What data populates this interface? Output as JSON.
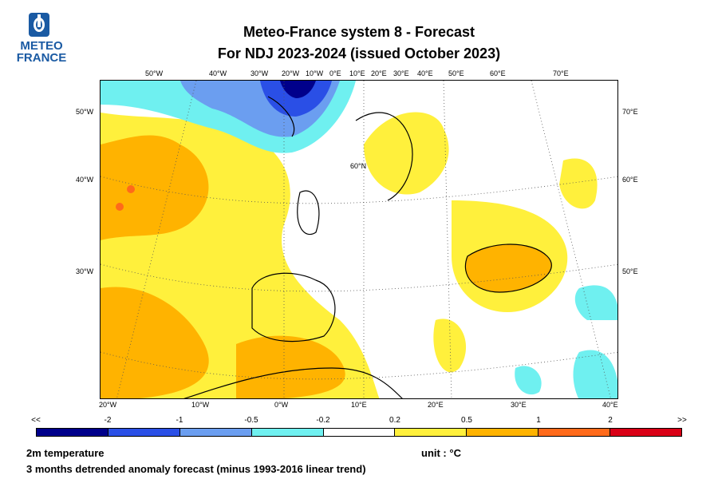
{
  "logo": {
    "line1": "METEO",
    "line2": "FRANCE"
  },
  "title": {
    "line1": "Meteo-France system 8  -  Forecast",
    "line2": "For NDJ 2023-2024      (issued October 2023)"
  },
  "map": {
    "top_labels": [
      "50°W",
      "40°W",
      "30°W",
      "20°W",
      "10°W",
      "0°E",
      "10°E",
      "20°E",
      "30°E",
      "40°E",
      "50°E",
      "60°E",
      "70°E"
    ],
    "bottom_labels": [
      "20°W",
      "10°W",
      "0°W",
      "10°E",
      "20°E",
      "30°E",
      "40°E"
    ],
    "left_labels": [
      "50°W",
      "40°W",
      "30°W"
    ],
    "right_labels": [
      "70°E",
      "60°E",
      "50°E"
    ],
    "inner_label": "60°N"
  },
  "colorbar": {
    "labels": [
      "<<",
      "-2",
      "-1",
      "-0.5",
      "-0.2",
      "0.2",
      "0.5",
      "1",
      "2",
      ">>"
    ],
    "colors": [
      "#00008b",
      "#2a4fe6",
      "#6b9ef0",
      "#6ff0f0",
      "#ffffff",
      "#fff03c",
      "#ffb300",
      "#ff6a1a",
      "#d90016"
    ]
  },
  "footer": {
    "variable": "2m temperature",
    "unit": "unit : °C",
    "description": "3 months detrended anomaly forecast (minus 1993-2016 linear trend)"
  }
}
